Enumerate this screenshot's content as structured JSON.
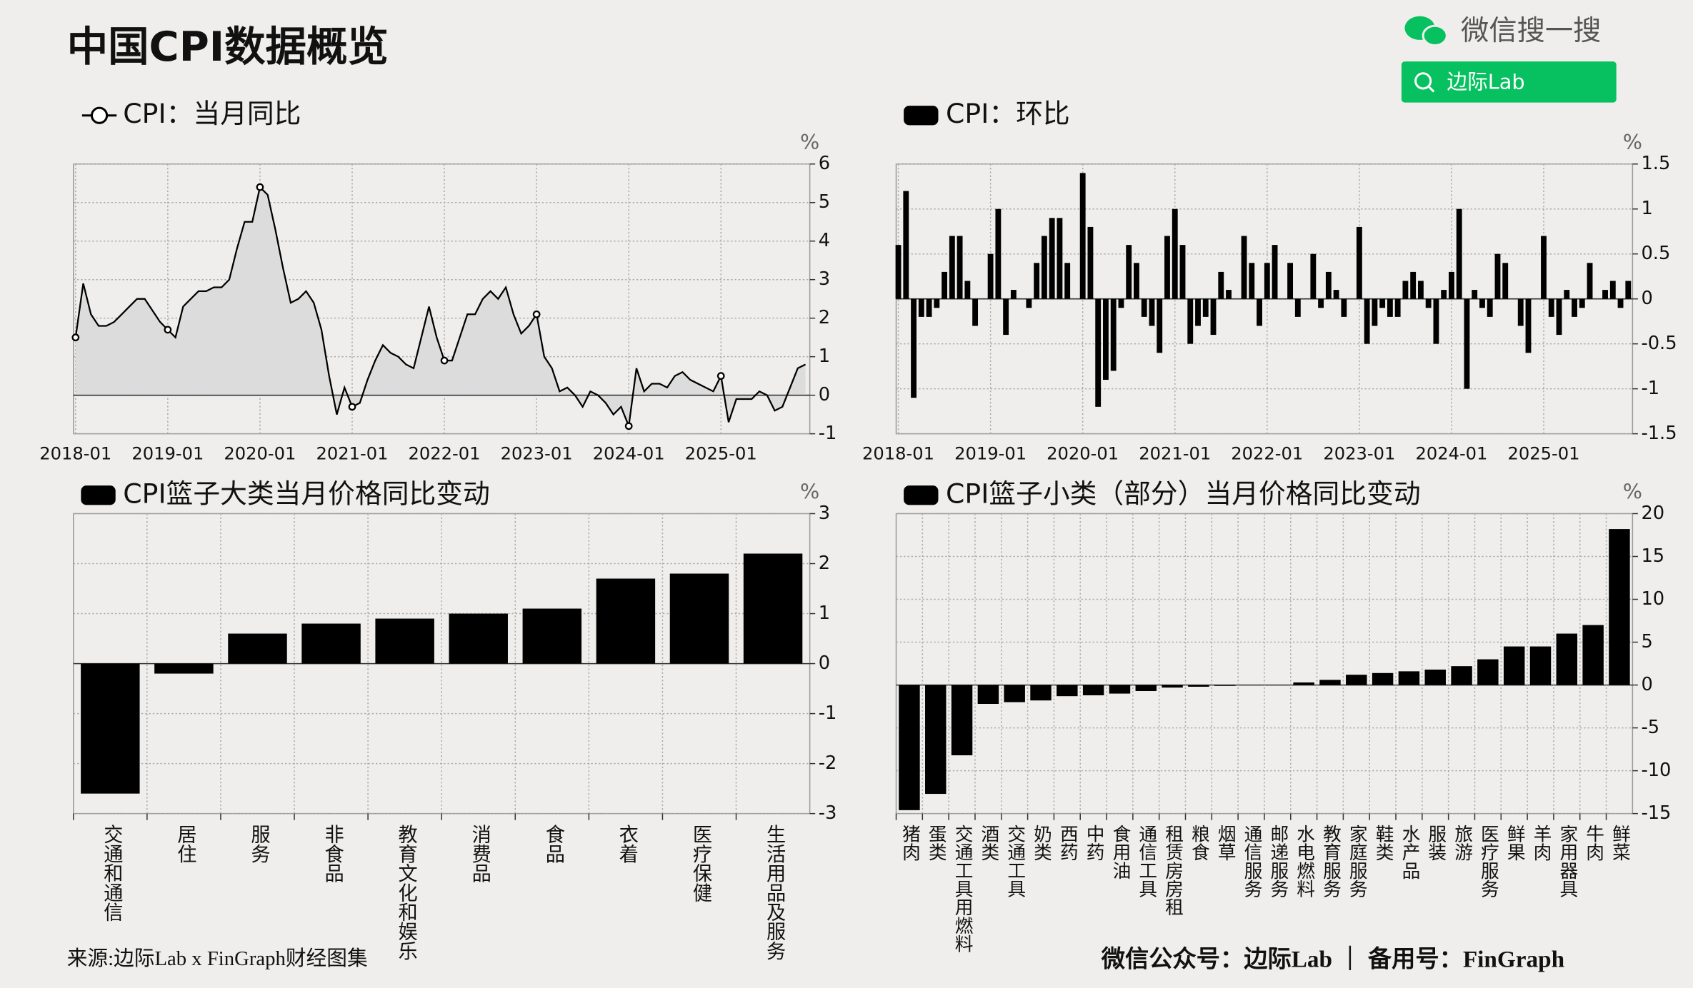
{
  "title": "中国CPI数据概览",
  "search_label": "微信搜一搜",
  "search_button": "边际Lab",
  "source": "来源:边际Lab x FinGraph财经图集",
  "footer": "微信公众号：边际Lab ｜ 备用号：FinGraph",
  "chart_data": [
    {
      "type": "line",
      "title": "CPI：当月同比",
      "unit": "%",
      "color": "#000000",
      "area_color": "#dcdcdc",
      "grid": true,
      "x": [
        "2018-01",
        null,
        null,
        null,
        null,
        null,
        null,
        null,
        null,
        null,
        null,
        null,
        "2019-01",
        null,
        null,
        null,
        null,
        null,
        null,
        null,
        null,
        null,
        null,
        null,
        "2020-01",
        null,
        null,
        null,
        null,
        null,
        null,
        null,
        null,
        null,
        null,
        null,
        "2021-01",
        null,
        null,
        null,
        null,
        null,
        null,
        null,
        null,
        null,
        null,
        null,
        "2022-01",
        null,
        null,
        null,
        null,
        null,
        null,
        null,
        null,
        null,
        null,
        null,
        "2023-01",
        null,
        null,
        null,
        null,
        null,
        null,
        null,
        null,
        null,
        null,
        null,
        "2024-01",
        null,
        null,
        null,
        null,
        null,
        null,
        null,
        null,
        null,
        null,
        null,
        "2025-01",
        null,
        null,
        null,
        null,
        null,
        null,
        null,
        null,
        null,
        null,
        null
      ],
      "values": [
        1.5,
        2.9,
        2.1,
        1.8,
        1.8,
        1.9,
        2.1,
        2.3,
        2.5,
        2.5,
        2.2,
        1.9,
        1.7,
        1.5,
        2.3,
        2.5,
        2.7,
        2.7,
        2.8,
        2.8,
        3.0,
        3.8,
        4.5,
        4.5,
        5.4,
        5.2,
        4.3,
        3.3,
        2.4,
        2.5,
        2.7,
        2.4,
        1.7,
        0.5,
        -0.5,
        0.2,
        -0.3,
        -0.2,
        0.4,
        0.9,
        1.3,
        1.1,
        1.0,
        0.8,
        0.7,
        1.5,
        2.3,
        1.5,
        0.9,
        0.9,
        1.5,
        2.1,
        2.1,
        2.5,
        2.7,
        2.5,
        2.8,
        2.1,
        1.6,
        1.8,
        2.1,
        1.0,
        0.7,
        0.1,
        0.2,
        0.0,
        -0.3,
        0.1,
        0.0,
        -0.2,
        -0.5,
        -0.3,
        -0.8,
        0.7,
        0.1,
        0.3,
        0.3,
        0.2,
        0.5,
        0.6,
        0.4,
        0.3,
        0.2,
        0.1,
        0.5,
        -0.7,
        -0.1,
        -0.1,
        -0.1,
        0.1,
        0.0,
        -0.4,
        -0.3,
        0.2,
        0.7,
        0.8
      ],
      "ylim": [
        -1,
        6
      ],
      "yticks": [
        -1,
        0,
        1,
        2,
        3,
        4,
        5,
        6
      ]
    },
    {
      "type": "bar",
      "title": "CPI：环比",
      "unit": "%",
      "color": "#000000",
      "grid": true,
      "x": [
        "2018-01",
        null,
        null,
        null,
        null,
        null,
        null,
        null,
        null,
        null,
        null,
        null,
        "2019-01",
        null,
        null,
        null,
        null,
        null,
        null,
        null,
        null,
        null,
        null,
        null,
        "2020-01",
        null,
        null,
        null,
        null,
        null,
        null,
        null,
        null,
        null,
        null,
        null,
        "2021-01",
        null,
        null,
        null,
        null,
        null,
        null,
        null,
        null,
        null,
        null,
        null,
        "2022-01",
        null,
        null,
        null,
        null,
        null,
        null,
        null,
        null,
        null,
        null,
        null,
        "2023-01",
        null,
        null,
        null,
        null,
        null,
        null,
        null,
        null,
        null,
        null,
        null,
        "2024-01",
        null,
        null,
        null,
        null,
        null,
        null,
        null,
        null,
        null,
        null,
        null,
        "2025-01",
        null,
        null,
        null,
        null,
        null,
        null,
        null,
        null,
        null,
        null,
        null
      ],
      "values": [
        0.6,
        1.2,
        -1.1,
        -0.2,
        -0.2,
        -0.1,
        0.3,
        0.7,
        0.7,
        0.2,
        -0.3,
        0.0,
        0.5,
        1.0,
        -0.4,
        0.1,
        0.0,
        -0.1,
        0.4,
        0.7,
        0.9,
        0.9,
        0.4,
        0.0,
        1.4,
        0.8,
        -1.2,
        -0.9,
        -0.8,
        -0.1,
        0.6,
        0.4,
        -0.2,
        -0.3,
        -0.6,
        0.7,
        1.0,
        0.6,
        -0.5,
        -0.3,
        -0.2,
        -0.4,
        0.3,
        0.1,
        0.0,
        0.7,
        0.4,
        -0.3,
        0.4,
        0.6,
        0.0,
        0.4,
        -0.2,
        0.0,
        0.5,
        -0.1,
        0.3,
        0.1,
        -0.2,
        0.0,
        0.8,
        -0.5,
        -0.3,
        -0.1,
        -0.2,
        -0.2,
        0.2,
        0.3,
        0.2,
        -0.1,
        -0.5,
        0.1,
        0.3,
        1.0,
        -1.0,
        0.1,
        -0.1,
        -0.2,
        0.5,
        0.4,
        0.0,
        -0.3,
        -0.6,
        0.0,
        0.7,
        -0.2,
        -0.4,
        0.1,
        -0.2,
        -0.1,
        0.4,
        0.0,
        0.1,
        0.2,
        -0.1,
        0.2
      ],
      "ylim": [
        -1.5,
        1.5
      ],
      "yticks": [
        -1.5,
        -1,
        -0.5,
        0,
        0.5,
        1,
        1.5
      ]
    },
    {
      "type": "bar",
      "title": "CPI篮子大类当月价格同比变动",
      "unit": "%",
      "color": "#000000",
      "grid": true,
      "categories": [
        "交通和通信",
        "居住",
        "服务",
        "非食品",
        "教育文化和娱乐",
        "消费品",
        "食品",
        "衣着",
        "医疗保健",
        "生活用品及服务"
      ],
      "values": [
        -2.6,
        -0.2,
        0.6,
        0.8,
        0.9,
        1.0,
        1.1,
        1.7,
        1.8,
        2.2
      ],
      "ylim": [
        -3,
        3
      ],
      "yticks": [
        -3,
        -2,
        -1,
        0,
        1,
        2,
        3
      ]
    },
    {
      "type": "bar",
      "title": "CPI篮子小类（部分）当月价格同比变动",
      "unit": "%",
      "color": "#000000",
      "grid": true,
      "categories": [
        "猪肉",
        "蛋类",
        "交通工具用燃料",
        "酒类",
        "交通工具",
        "奶类",
        "西药",
        "中药",
        "食用油",
        "通信工具",
        "租赁房房租",
        "粮食",
        "烟草",
        "通信服务",
        "邮递服务",
        "水电燃料",
        "教育服务",
        "家庭服务",
        "鞋类",
        "水产品",
        "服装",
        "旅游",
        "医疗服务",
        "鲜果",
        "羊肉",
        "家用器具",
        "牛肉",
        "鲜菜"
      ],
      "values": [
        -14.6,
        -12.7,
        -8.2,
        -2.2,
        -2.0,
        -1.8,
        -1.3,
        -1.2,
        -1.0,
        -0.7,
        -0.3,
        -0.2,
        -0.1,
        0,
        0,
        0.3,
        0.6,
        1.2,
        1.4,
        1.6,
        1.8,
        2.2,
        3.0,
        4.5,
        4.5,
        6.0,
        7.0,
        18.2
      ],
      "ylim": [
        -15,
        20
      ],
      "yticks": [
        -15,
        -10,
        -5,
        0,
        5,
        10,
        15,
        20
      ]
    }
  ]
}
